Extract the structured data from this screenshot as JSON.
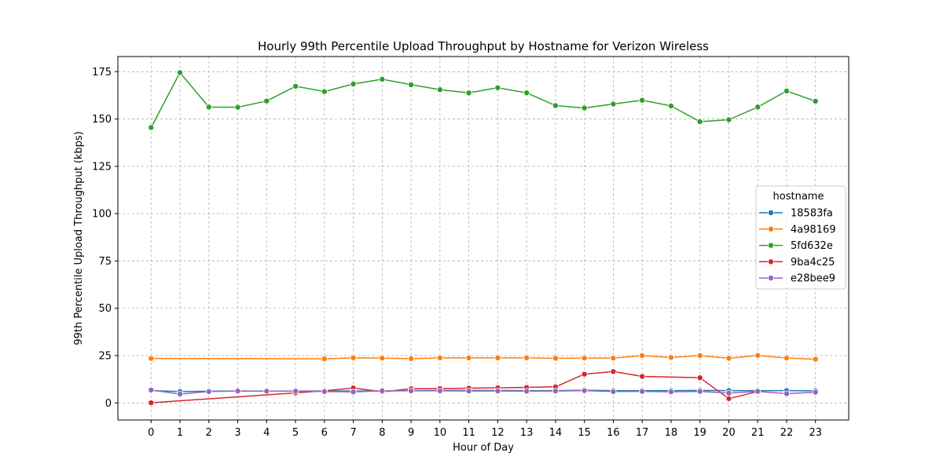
{
  "chart_data": {
    "type": "line",
    "title": "Hourly 99th Percentile Upload Throughput by Hostname for Verizon Wireless",
    "xlabel": "Hour of Day",
    "ylabel": "99th Percentile Upload Throughput (kbps)",
    "x": [
      0,
      1,
      2,
      3,
      4,
      5,
      6,
      7,
      8,
      9,
      10,
      11,
      12,
      13,
      14,
      15,
      16,
      17,
      18,
      19,
      20,
      21,
      22,
      23
    ],
    "x_tick_labels": [
      "0",
      "1",
      "2",
      "3",
      "4",
      "5",
      "6",
      "7",
      "8",
      "9",
      "10",
      "11",
      "12",
      "13",
      "14",
      "15",
      "16",
      "17",
      "18",
      "19",
      "20",
      "21",
      "22",
      "23"
    ],
    "xlim": [
      -1.15,
      24.15
    ],
    "ylim": [
      -9,
      183
    ],
    "y_ticks": [
      0,
      25,
      50,
      75,
      100,
      125,
      150,
      175
    ],
    "y_tick_labels": [
      "0",
      "25",
      "50",
      "75",
      "100",
      "125",
      "150",
      "175"
    ],
    "grid": true,
    "legend": {
      "title": "hostname",
      "placement": "center-right"
    },
    "series": [
      {
        "name": "18583fa",
        "color": "#1f77b4",
        "x": [
          0,
          1,
          2,
          3,
          4,
          5,
          6,
          7,
          8,
          9,
          10,
          11,
          12,
          13,
          14,
          15,
          16,
          17,
          18,
          19,
          20,
          21,
          22,
          23
        ],
        "values": [
          6.5,
          6.0,
          6.2,
          6.3,
          6.2,
          6.3,
          6.3,
          6.3,
          6.3,
          6.5,
          6.6,
          6.6,
          6.6,
          6.5,
          6.5,
          6.7,
          6.5,
          6.5,
          6.5,
          6.6,
          6.5,
          6.5,
          6.5,
          6.4
        ]
      },
      {
        "name": "4a98169",
        "color": "#ff7f0e",
        "x": [
          0,
          6,
          7,
          8,
          9,
          10,
          11,
          12,
          13,
          14,
          15,
          16,
          17,
          18,
          19,
          20,
          21,
          22,
          23
        ],
        "values": [
          23.5,
          23.3,
          23.8,
          23.7,
          23.4,
          23.8,
          23.8,
          23.8,
          23.8,
          23.6,
          23.7,
          23.7,
          25.0,
          24.0,
          25.0,
          23.6,
          25.1,
          23.7,
          23.1
        ]
      },
      {
        "name": "5fd632e",
        "color": "#2ca02c",
        "x": [
          0,
          1,
          2,
          3,
          4,
          5,
          6,
          7,
          8,
          9,
          10,
          11,
          12,
          13,
          14,
          15,
          16,
          17,
          18,
          19,
          20,
          21,
          22,
          23
        ],
        "values": [
          145.5,
          174.5,
          156.3,
          156.2,
          159.5,
          167.3,
          164.5,
          168.5,
          171.0,
          168.1,
          165.5,
          163.8,
          166.5,
          163.8,
          157.1,
          155.8,
          157.9,
          159.9,
          156.9,
          148.6,
          149.6,
          156.3,
          164.8,
          159.4
        ]
      },
      {
        "name": "9ba4c25",
        "color": "#d62728",
        "x": [
          0,
          5,
          6,
          7,
          8,
          9,
          10,
          11,
          12,
          13,
          14,
          15,
          16,
          17,
          19,
          20,
          21
        ],
        "values": [
          0.1,
          5.3,
          6.4,
          7.9,
          5.9,
          7.5,
          7.6,
          7.8,
          8.0,
          8.2,
          8.5,
          15.2,
          16.6,
          14.0,
          13.3,
          2.3,
          6.0
        ]
      },
      {
        "name": "e28bee9",
        "color": "#9467bd",
        "x": [
          0,
          1,
          2,
          3,
          4,
          5,
          6,
          7,
          8,
          9,
          10,
          11,
          12,
          13,
          14,
          15,
          16,
          17,
          18,
          19,
          20,
          21,
          22,
          23
        ],
        "values": [
          6.8,
          4.7,
          6.0,
          6.3,
          6.2,
          6.2,
          6.0,
          5.8,
          6.4,
          6.4,
          6.4,
          6.3,
          6.3,
          6.2,
          6.3,
          6.5,
          6.0,
          6.1,
          5.9,
          6.1,
          5.2,
          6.1,
          4.9,
          5.7
        ]
      }
    ]
  }
}
